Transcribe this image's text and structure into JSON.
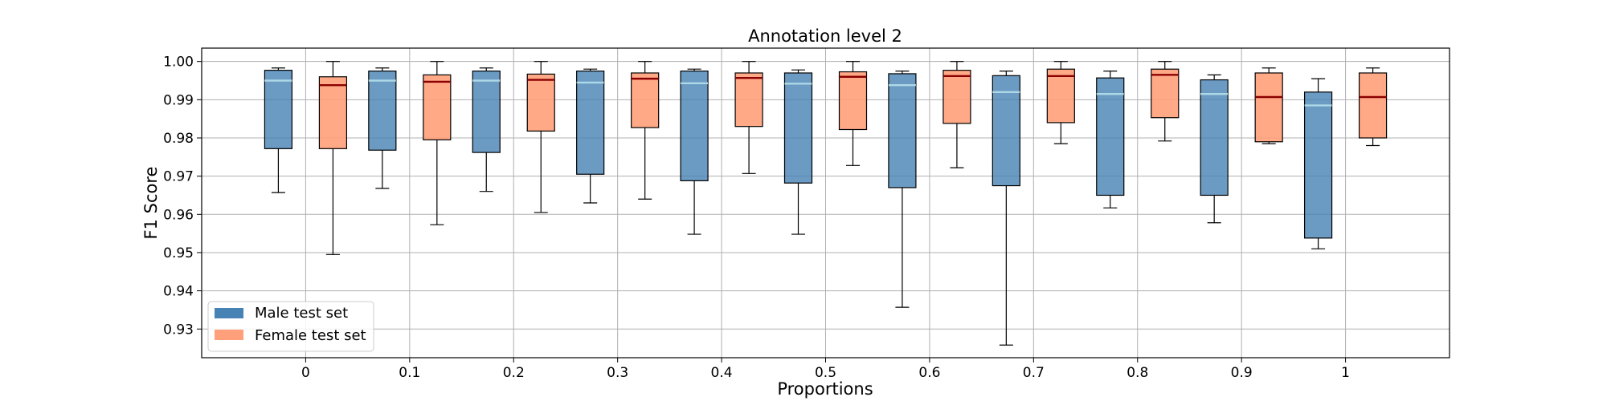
{
  "chart_data": {
    "type": "box",
    "title": "Annotation level 2",
    "xlabel": "Proportions",
    "ylabel": "F1 Score",
    "ylim": [
      0.9225,
      1.0035
    ],
    "yticks": [
      0.93,
      0.94,
      0.95,
      0.96,
      0.97,
      0.98,
      0.99,
      1.0
    ],
    "ytick_labels": [
      "0.93",
      "0.94",
      "0.95",
      "0.96",
      "0.97",
      "0.98",
      "0.99",
      "1.00"
    ],
    "categories": [
      "0",
      "0.1",
      "0.2",
      "0.3",
      "0.4",
      "0.5",
      "0.6",
      "0.7",
      "0.8",
      "0.9",
      "1"
    ],
    "grid": true,
    "legend_position": "lower-left",
    "series": [
      {
        "name": "Male test set",
        "color": "#4682b4",
        "median_color": "#add8e6",
        "boxes": [
          {
            "whislo": 0.9657,
            "q1": 0.9772,
            "med": 0.995,
            "q3": 0.9977,
            "whishi": 0.9983
          },
          {
            "whislo": 0.9668,
            "q1": 0.9768,
            "med": 0.995,
            "q3": 0.9975,
            "whishi": 0.9983
          },
          {
            "whislo": 0.966,
            "q1": 0.9762,
            "med": 0.995,
            "q3": 0.9975,
            "whishi": 0.9983
          },
          {
            "whislo": 0.963,
            "q1": 0.9705,
            "med": 0.9945,
            "q3": 0.9975,
            "whishi": 0.998
          },
          {
            "whislo": 0.9548,
            "q1": 0.9688,
            "med": 0.9943,
            "q3": 0.9975,
            "whishi": 0.998
          },
          {
            "whislo": 0.9548,
            "q1": 0.9682,
            "med": 0.9942,
            "q3": 0.997,
            "whishi": 0.9978
          },
          {
            "whislo": 0.9357,
            "q1": 0.967,
            "med": 0.9938,
            "q3": 0.9968,
            "whishi": 0.9975
          },
          {
            "whislo": 0.9258,
            "q1": 0.9675,
            "med": 0.992,
            "q3": 0.9963,
            "whishi": 0.9975
          },
          {
            "whislo": 0.9617,
            "q1": 0.965,
            "med": 0.9915,
            "q3": 0.9957,
            "whishi": 0.9975
          },
          {
            "whislo": 0.9578,
            "q1": 0.965,
            "med": 0.9915,
            "q3": 0.9952,
            "whishi": 0.9965
          },
          {
            "whislo": 0.951,
            "q1": 0.9538,
            "med": 0.9885,
            "q3": 0.992,
            "whishi": 0.9955
          }
        ]
      },
      {
        "name": "Female test set",
        "color": "#ffa07a",
        "median_color": "#8b0000",
        "boxes": [
          {
            "whislo": 0.9495,
            "q1": 0.9772,
            "med": 0.9938,
            "q3": 0.996,
            "whishi": 1.0
          },
          {
            "whislo": 0.9573,
            "q1": 0.9795,
            "med": 0.9947,
            "q3": 0.9965,
            "whishi": 1.0
          },
          {
            "whislo": 0.9605,
            "q1": 0.9818,
            "med": 0.9952,
            "q3": 0.9967,
            "whishi": 1.0
          },
          {
            "whislo": 0.964,
            "q1": 0.9827,
            "med": 0.9955,
            "q3": 0.997,
            "whishi": 1.0
          },
          {
            "whislo": 0.9707,
            "q1": 0.983,
            "med": 0.9957,
            "q3": 0.997,
            "whishi": 1.0
          },
          {
            "whislo": 0.9728,
            "q1": 0.9822,
            "med": 0.996,
            "q3": 0.9973,
            "whishi": 1.0
          },
          {
            "whislo": 0.9722,
            "q1": 0.9838,
            "med": 0.9962,
            "q3": 0.9977,
            "whishi": 1.0
          },
          {
            "whislo": 0.9785,
            "q1": 0.984,
            "med": 0.9962,
            "q3": 0.998,
            "whishi": 1.0
          },
          {
            "whislo": 0.9792,
            "q1": 0.9853,
            "med": 0.9965,
            "q3": 0.998,
            "whishi": 1.0
          },
          {
            "whislo": 0.9785,
            "q1": 0.979,
            "med": 0.9907,
            "q3": 0.997,
            "whishi": 0.9983
          },
          {
            "whislo": 0.978,
            "q1": 0.98,
            "med": 0.9907,
            "q3": 0.997,
            "whishi": 0.9983
          }
        ]
      }
    ]
  }
}
